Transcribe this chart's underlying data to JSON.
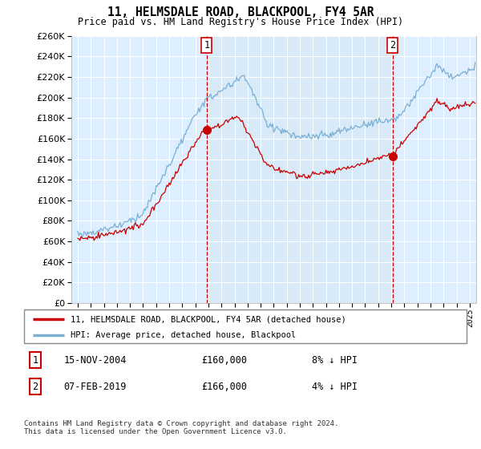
{
  "title": "11, HELMSDALE ROAD, BLACKPOOL, FY4 5AR",
  "subtitle": "Price paid vs. HM Land Registry's House Price Index (HPI)",
  "legend_line1": "11, HELMSDALE ROAD, BLACKPOOL, FY4 5AR (detached house)",
  "legend_line2": "HPI: Average price, detached house, Blackpool",
  "footer": "Contains HM Land Registry data © Crown copyright and database right 2024.\nThis data is licensed under the Open Government Licence v3.0.",
  "transaction1": {
    "label": "1",
    "date": "15-NOV-2004",
    "price": "£160,000",
    "hpi": "8% ↓ HPI",
    "x": 2004.88
  },
  "transaction2": {
    "label": "2",
    "date": "07-FEB-2019",
    "price": "£166,000",
    "hpi": "4% ↓ HPI",
    "x": 2019.1
  },
  "red_line_color": "#cc0000",
  "blue_line_color": "#7ab0d4",
  "shade_color": "#d8eaf7",
  "background_color": "#ddeeff",
  "grid_color": "#ffffff",
  "ylim": [
    0,
    260000
  ],
  "yticks": [
    0,
    20000,
    40000,
    60000,
    80000,
    100000,
    120000,
    140000,
    160000,
    180000,
    200000,
    220000,
    240000,
    260000
  ],
  "xlim_start": 1994.5,
  "xlim_end": 2025.5
}
